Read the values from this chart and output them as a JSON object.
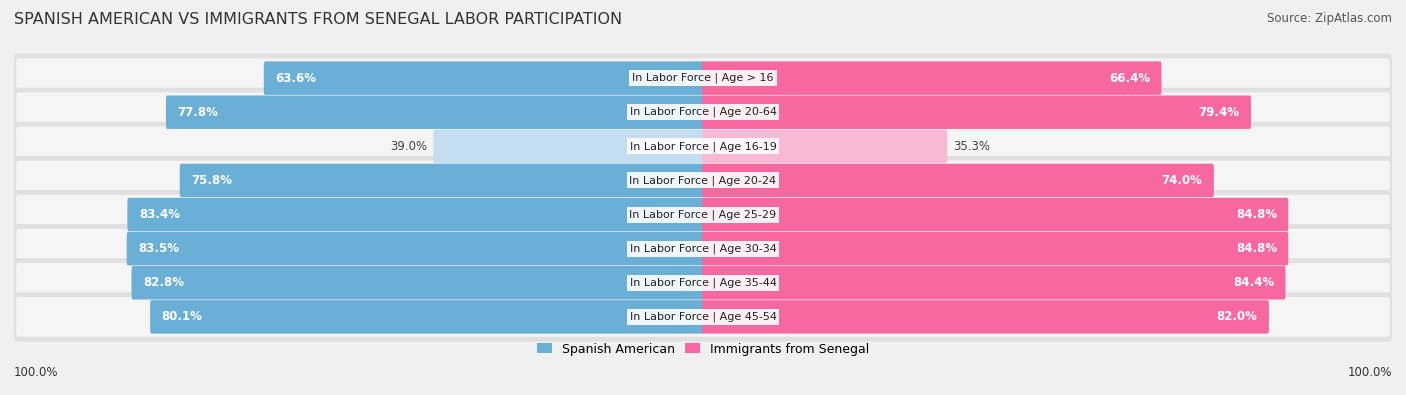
{
  "title": "SPANISH AMERICAN VS IMMIGRANTS FROM SENEGAL LABOR PARTICIPATION",
  "source": "Source: ZipAtlas.com",
  "categories": [
    "In Labor Force | Age > 16",
    "In Labor Force | Age 20-64",
    "In Labor Force | Age 16-19",
    "In Labor Force | Age 20-24",
    "In Labor Force | Age 25-29",
    "In Labor Force | Age 30-34",
    "In Labor Force | Age 35-44",
    "In Labor Force | Age 45-54"
  ],
  "spanish_american": [
    63.6,
    77.8,
    39.0,
    75.8,
    83.4,
    83.5,
    82.8,
    80.1
  ],
  "senegal": [
    66.4,
    79.4,
    35.3,
    74.0,
    84.8,
    84.8,
    84.4,
    82.0
  ],
  "spanish_color_dark": "#6aafd6",
  "spanish_color_light": "#c5ddf0",
  "senegal_color_dark": "#f768a1",
  "senegal_color_light": "#f9b8d4",
  "bar_height": 0.68,
  "background_color": "#f0f0f0",
  "row_bg_color": "#e8e8e8",
  "label_color_white": "#ffffff",
  "label_color_dark": "#444444",
  "legend_spanish": "Spanish American",
  "legend_senegal": "Immigrants from Senegal",
  "max_value": 100.0,
  "title_fontsize": 11.5,
  "source_fontsize": 8.5,
  "bar_label_fontsize": 8.5,
  "category_fontsize": 8,
  "footer_fontsize": 8.5,
  "title_color": "#333333",
  "source_color": "#555555",
  "footer_color": "#333333"
}
